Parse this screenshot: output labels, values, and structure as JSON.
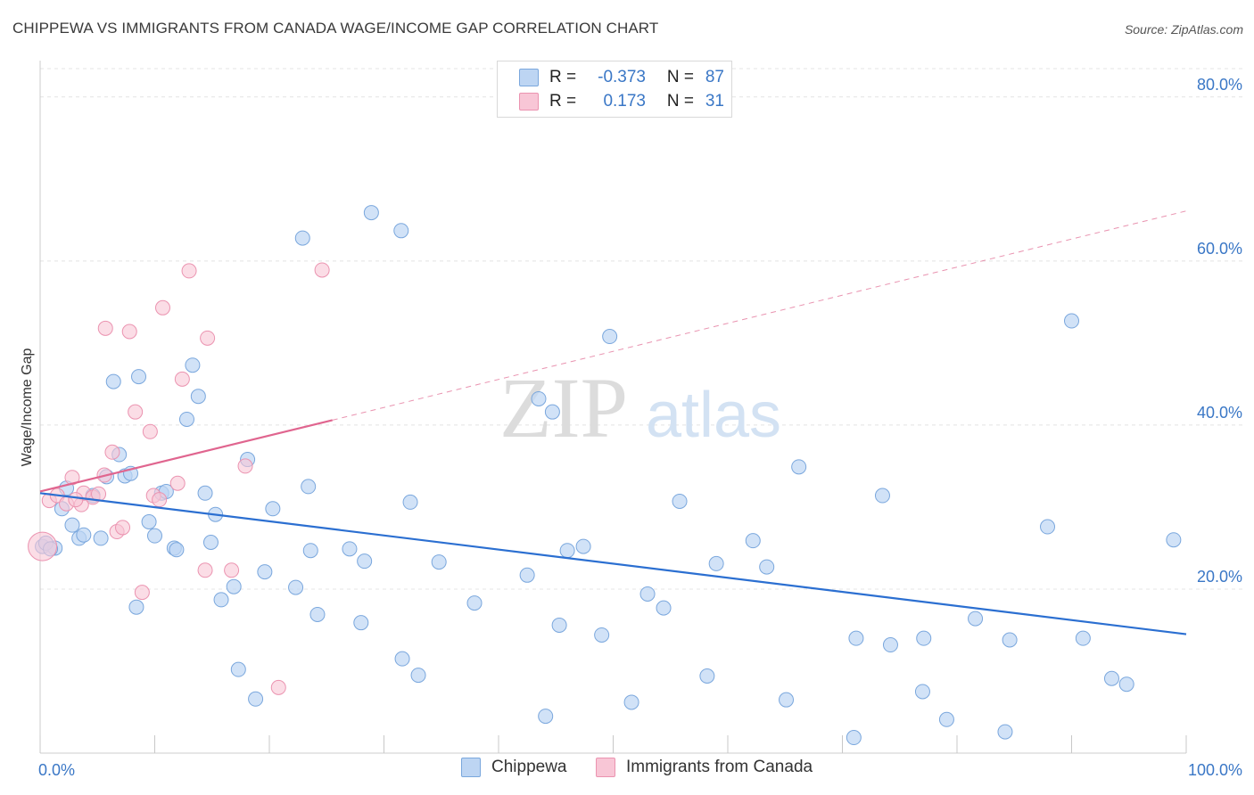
{
  "title": "CHIPPEWA VS IMMIGRANTS FROM CANADA WAGE/INCOME GAP CORRELATION CHART",
  "source": "Source: ZipAtlas.com",
  "watermark": {
    "zip": "ZIP",
    "atlas": "atlas"
  },
  "legend": {
    "rows": [
      {
        "r_label": "R =",
        "r_value": "-0.373",
        "n_label": "N =",
        "n_value": "87"
      },
      {
        "r_label": "R =",
        "r_value": "0.173",
        "n_label": "N =",
        "n_value": "31"
      }
    ]
  },
  "bottom_legend": [
    "Chippewa",
    "Immigrants from Canada"
  ],
  "colors": {
    "chippewa_fill": "#bdd5f3",
    "chippewa_stroke": "#7aa7dd",
    "chippewa_line": "#2b6fd1",
    "canada_fill": "#f8c6d6",
    "canada_stroke": "#eb93b0",
    "canada_line": "#e0658f",
    "tick_label": "#3a77c6"
  },
  "chart_data": {
    "type": "scatter",
    "title": "CHIPPEWA VS IMMIGRANTS FROM CANADA WAGE/INCOME GAP CORRELATION CHART",
    "xlabel": "",
    "ylabel": "Wage/Income Gap",
    "xlim": [
      0,
      100
    ],
    "ylim": [
      0,
      84
    ],
    "x_tick_labels": [
      "0.0%",
      "100.0%"
    ],
    "y_ticks": [
      20,
      40,
      60,
      80
    ],
    "y_tick_labels": [
      "20.0%",
      "40.0%",
      "60.0%",
      "80.0%"
    ],
    "grid": true,
    "legend_position": "top-center",
    "series": [
      {
        "name": "Chippewa",
        "points": [
          [
            0.2,
            25.2
          ],
          [
            1.3,
            25.0
          ],
          [
            1.9,
            29.8
          ],
          [
            2.3,
            32.3
          ],
          [
            2.8,
            27.8
          ],
          [
            3.4,
            26.2
          ],
          [
            3.8,
            26.6
          ],
          [
            4.6,
            31.4
          ],
          [
            5.3,
            26.2
          ],
          [
            5.8,
            33.7
          ],
          [
            6.4,
            45.3
          ],
          [
            6.9,
            36.4
          ],
          [
            7.4,
            33.8
          ],
          [
            7.9,
            34.1
          ],
          [
            8.4,
            17.8
          ],
          [
            8.6,
            45.9
          ],
          [
            9.5,
            28.2
          ],
          [
            10.0,
            26.5
          ],
          [
            10.6,
            31.7
          ],
          [
            11.0,
            31.9
          ],
          [
            11.7,
            25.0
          ],
          [
            11.9,
            24.8
          ],
          [
            12.8,
            40.7
          ],
          [
            13.3,
            47.3
          ],
          [
            13.8,
            43.5
          ],
          [
            14.4,
            31.7
          ],
          [
            14.9,
            25.7
          ],
          [
            15.3,
            29.1
          ],
          [
            15.8,
            18.7
          ],
          [
            16.9,
            20.3
          ],
          [
            17.3,
            10.2
          ],
          [
            18.1,
            35.8
          ],
          [
            18.8,
            6.6
          ],
          [
            19.6,
            22.1
          ],
          [
            20.3,
            29.8
          ],
          [
            22.3,
            20.2
          ],
          [
            22.9,
            62.8
          ],
          [
            23.4,
            32.5
          ],
          [
            23.6,
            24.7
          ],
          [
            24.2,
            16.9
          ],
          [
            27.0,
            24.9
          ],
          [
            28.0,
            15.9
          ],
          [
            28.3,
            23.4
          ],
          [
            28.9,
            65.9
          ],
          [
            31.5,
            63.7
          ],
          [
            31.6,
            11.5
          ],
          [
            32.3,
            30.6
          ],
          [
            33.0,
            9.5
          ],
          [
            34.8,
            23.3
          ],
          [
            37.9,
            18.3
          ],
          [
            42.5,
            21.7
          ],
          [
            43.5,
            43.2
          ],
          [
            44.1,
            4.5
          ],
          [
            44.7,
            41.6
          ],
          [
            45.3,
            15.6
          ],
          [
            46.0,
            24.7
          ],
          [
            47.4,
            25.2
          ],
          [
            49.0,
            14.4
          ],
          [
            49.7,
            50.8
          ],
          [
            51.6,
            6.2
          ],
          [
            53.0,
            19.4
          ],
          [
            54.4,
            17.7
          ],
          [
            55.8,
            30.7
          ],
          [
            58.2,
            9.4
          ],
          [
            59.0,
            23.1
          ],
          [
            62.2,
            25.9
          ],
          [
            63.4,
            22.7
          ],
          [
            65.1,
            6.5
          ],
          [
            66.2,
            34.9
          ],
          [
            71.0,
            1.9
          ],
          [
            71.2,
            14.0
          ],
          [
            73.5,
            31.4
          ],
          [
            74.2,
            13.2
          ],
          [
            77.0,
            7.5
          ],
          [
            77.1,
            14.0
          ],
          [
            79.1,
            4.1
          ],
          [
            81.6,
            16.4
          ],
          [
            84.2,
            2.6
          ],
          [
            84.6,
            13.8
          ],
          [
            87.9,
            27.6
          ],
          [
            90.0,
            52.7
          ],
          [
            91.0,
            14.0
          ],
          [
            93.5,
            9.1
          ],
          [
            94.8,
            8.4
          ],
          [
            98.9,
            26.0
          ],
          [
            0.5,
            25.6
          ],
          [
            0.9,
            24.9
          ]
        ],
        "trend": {
          "x": [
            0,
            100
          ],
          "y": [
            31.7,
            14.5
          ]
        }
      },
      {
        "name": "Immigrants from Canada",
        "points": [
          [
            0.2,
            25.2
          ],
          [
            0.8,
            30.8
          ],
          [
            1.5,
            31.4
          ],
          [
            2.3,
            30.4
          ],
          [
            2.8,
            33.6
          ],
          [
            3.6,
            30.3
          ],
          [
            3.8,
            31.7
          ],
          [
            4.6,
            31.2
          ],
          [
            5.1,
            31.6
          ],
          [
            5.6,
            33.9
          ],
          [
            5.7,
            51.8
          ],
          [
            6.3,
            36.7
          ],
          [
            6.7,
            27.0
          ],
          [
            7.2,
            27.5
          ],
          [
            7.8,
            51.4
          ],
          [
            8.3,
            41.6
          ],
          [
            8.9,
            19.6
          ],
          [
            9.6,
            39.2
          ],
          [
            9.9,
            31.4
          ],
          [
            10.4,
            30.9
          ],
          [
            10.7,
            54.3
          ],
          [
            12.0,
            32.9
          ],
          [
            12.4,
            45.6
          ],
          [
            13.0,
            58.8
          ],
          [
            14.4,
            22.3
          ],
          [
            14.6,
            50.6
          ],
          [
            16.7,
            22.3
          ],
          [
            17.9,
            35.0
          ],
          [
            20.8,
            8.0
          ],
          [
            24.6,
            58.9
          ],
          [
            3.1,
            30.9
          ]
        ],
        "trend_solid": {
          "x": [
            0,
            25.5
          ],
          "y": [
            31.9,
            40.6
          ]
        },
        "trend_dashed": {
          "x": [
            25.5,
            100
          ],
          "y": [
            40.6,
            66.1
          ]
        }
      }
    ]
  }
}
